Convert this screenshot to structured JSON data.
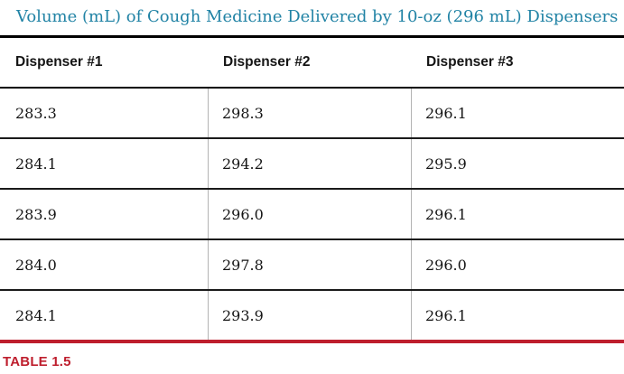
{
  "title": "Volume (mL) of Cough Medicine Delivered by 10-oz (296 mL) Dispensers",
  "caption": "TABLE 1.5",
  "colors": {
    "title_text": "#2183a5",
    "caption_text": "#be1e2d",
    "bottom_rule": "#be1e2d",
    "top_rule": "#000000",
    "header_rule": "#000000",
    "row_rule": "#1a1a1a",
    "column_divider": "#b3b3b3",
    "background": "#ffffff"
  },
  "chart_data": {
    "type": "table",
    "title": "Volume (mL) of Cough Medicine Delivered by 10-oz (296 mL) Dispensers",
    "caption": "TABLE 1.5",
    "columns": [
      "Dispenser #1",
      "Dispenser #2",
      "Dispenser #3"
    ],
    "rows": [
      [
        "283.3",
        "298.3",
        "296.1"
      ],
      [
        "284.1",
        "294.2",
        "295.9"
      ],
      [
        "283.9",
        "296.0",
        "296.1"
      ],
      [
        "284.0",
        "297.8",
        "296.0"
      ],
      [
        "284.1",
        "293.9",
        "296.1"
      ]
    ]
  }
}
